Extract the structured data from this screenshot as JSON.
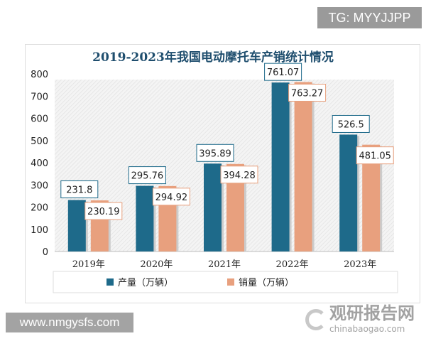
{
  "chart_data": {
    "type": "bar",
    "title": "2019-2023年我国电动摩托车产销统计情况",
    "categories": [
      "2019年",
      "2020年",
      "2021年",
      "2022年",
      "2023年"
    ],
    "series": [
      {
        "name": "产量（万辆）",
        "values": [
          231.8,
          295.76,
          395.89,
          761.07,
          526.5
        ],
        "labels": [
          "231.8",
          "295.76",
          "395.89",
          "761.07",
          "526.5"
        ],
        "color": "#1e6a8a"
      },
      {
        "name": "销量（万辆）",
        "values": [
          230.19,
          294.92,
          394.28,
          763.27,
          481.05
        ],
        "labels": [
          "230.19",
          "294.92",
          "394.28",
          "763.27",
          "481.05"
        ],
        "color": "#e8a07e"
      }
    ],
    "ylim": [
      0,
      800
    ],
    "yticks": [
      "0",
      "100",
      "200",
      "300",
      "400",
      "500",
      "600",
      "700",
      "800"
    ],
    "legend": "bottom",
    "grid": false
  },
  "watermarks": {
    "tg": "TG: MYYJJPP",
    "url": "www.nmgysfs.com",
    "logo_cn": "观研报告网",
    "logo_en": "chinabaogao.com"
  }
}
